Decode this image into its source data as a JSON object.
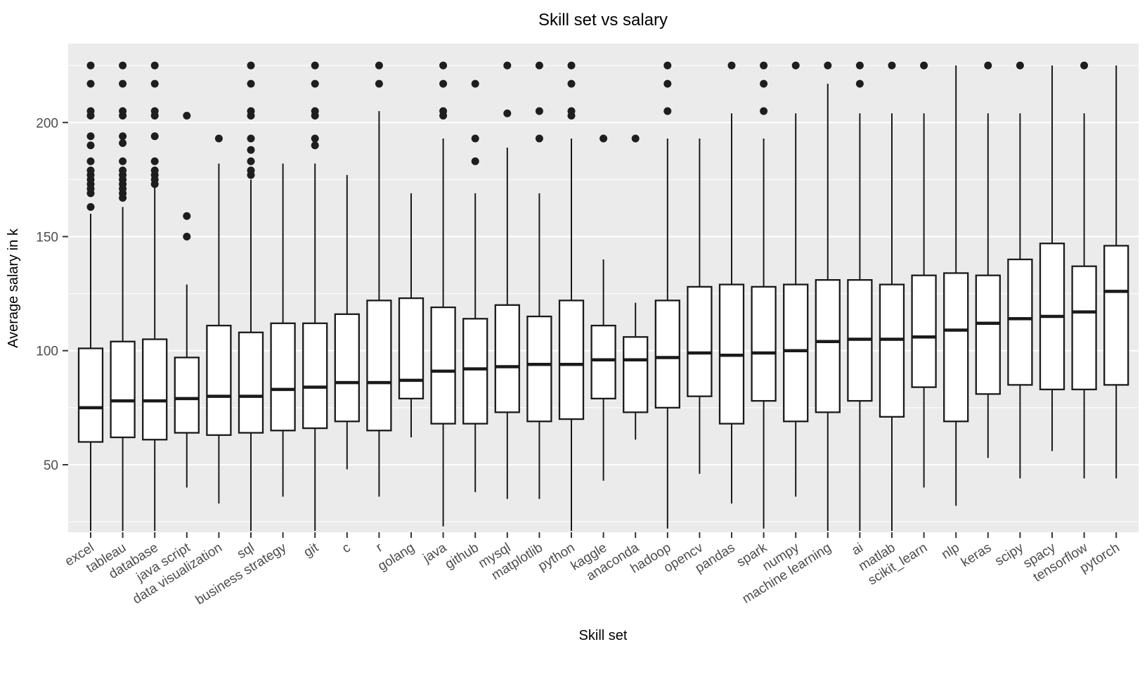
{
  "chart_data": {
    "type": "boxplot",
    "title": "Skill set vs salary",
    "xlabel": "Skill set",
    "ylabel": "Average salary in k",
    "ylim": [
      20.4,
      234.6
    ],
    "y_major_ticks": [
      50,
      100,
      150,
      200
    ],
    "y_minor_gridlines": [
      25,
      75,
      125,
      175,
      225
    ],
    "grid": true,
    "legend": false,
    "colors": {
      "panel_bg": "#EBEBEB",
      "gridline": "#FFFFFF",
      "box_fill": "#FFFFFF",
      "box_stroke": "#1A1A1A",
      "median_stroke": "#1A1A1A",
      "outlier_dot": "#1E1E1E",
      "axis_text": "#4D4D4D",
      "tick_mark": "#333333",
      "title_text": "#000000"
    },
    "series": [
      {
        "label": "excel",
        "whisker_low": 21,
        "q1": 60,
        "median": 75,
        "q3": 101,
        "whisker_high": 160,
        "outliers": [
          163,
          169,
          171,
          173,
          175,
          177,
          179,
          183,
          190,
          194,
          203,
          205,
          217,
          225
        ]
      },
      {
        "label": "tableau",
        "whisker_low": 21,
        "q1": 62,
        "median": 78,
        "q3": 104,
        "whisker_high": 163,
        "outliers": [
          167,
          169,
          171,
          173,
          175,
          177,
          179,
          183,
          191,
          194,
          203,
          205,
          217,
          225
        ]
      },
      {
        "label": "database",
        "whisker_low": 21,
        "q1": 61,
        "median": 78,
        "q3": 105,
        "whisker_high": 172,
        "outliers": [
          173,
          175,
          177,
          179,
          183,
          194,
          203,
          205,
          217,
          225
        ]
      },
      {
        "label": "java script",
        "whisker_low": 40,
        "q1": 64,
        "median": 79,
        "q3": 97,
        "whisker_high": 129,
        "outliers": [
          150,
          159,
          203
        ]
      },
      {
        "label": "data visualization",
        "whisker_low": 33,
        "q1": 63,
        "median": 80,
        "q3": 111,
        "whisker_high": 182,
        "outliers": [
          193
        ]
      },
      {
        "label": "sql",
        "whisker_low": 21,
        "q1": 64,
        "median": 80,
        "q3": 108,
        "whisker_high": 175,
        "outliers": [
          177,
          179,
          183,
          188,
          193,
          203,
          205,
          217,
          225
        ]
      },
      {
        "label": "business strategy",
        "whisker_low": 36,
        "q1": 65,
        "median": 83,
        "q3": 112,
        "whisker_high": 182,
        "outliers": []
      },
      {
        "label": "git",
        "whisker_low": 21,
        "q1": 66,
        "median": 84,
        "q3": 112,
        "whisker_high": 182,
        "outliers": [
          190,
          193,
          203,
          205,
          217,
          225
        ]
      },
      {
        "label": "c",
        "whisker_low": 48,
        "q1": 69,
        "median": 86,
        "q3": 116,
        "whisker_high": 177,
        "outliers": []
      },
      {
        "label": "r",
        "whisker_low": 36,
        "q1": 65,
        "median": 86,
        "q3": 122,
        "whisker_high": 205,
        "outliers": [
          217,
          225
        ]
      },
      {
        "label": "golang",
        "whisker_low": 62,
        "q1": 79,
        "median": 87,
        "q3": 123,
        "whisker_high": 169,
        "outliers": []
      },
      {
        "label": "java",
        "whisker_low": 23,
        "q1": 68,
        "median": 91,
        "q3": 119,
        "whisker_high": 193,
        "outliers": [
          203,
          205,
          217,
          225
        ]
      },
      {
        "label": "github",
        "whisker_low": 38,
        "q1": 68,
        "median": 92,
        "q3": 114,
        "whisker_high": 169,
        "outliers": [
          183,
          193,
          217
        ]
      },
      {
        "label": "mysql",
        "whisker_low": 35,
        "q1": 73,
        "median": 93,
        "q3": 120,
        "whisker_high": 189,
        "outliers": [
          204,
          225
        ]
      },
      {
        "label": "matplotlib",
        "whisker_low": 35,
        "q1": 69,
        "median": 94,
        "q3": 115,
        "whisker_high": 169,
        "outliers": [
          193,
          205,
          225
        ]
      },
      {
        "label": "python",
        "whisker_low": 21,
        "q1": 70,
        "median": 94,
        "q3": 122,
        "whisker_high": 193,
        "outliers": [
          203,
          205,
          217,
          225
        ]
      },
      {
        "label": "kaggle",
        "whisker_low": 43,
        "q1": 79,
        "median": 96,
        "q3": 111,
        "whisker_high": 140,
        "outliers": [
          193
        ]
      },
      {
        "label": "anaconda",
        "whisker_low": 61,
        "q1": 73,
        "median": 96,
        "q3": 106,
        "whisker_high": 121,
        "outliers": [
          193
        ]
      },
      {
        "label": "hadoop",
        "whisker_low": 22,
        "q1": 75,
        "median": 97,
        "q3": 122,
        "whisker_high": 193,
        "outliers": [
          205,
          217,
          225
        ]
      },
      {
        "label": "opencv",
        "whisker_low": 46,
        "q1": 80,
        "median": 99,
        "q3": 128,
        "whisker_high": 193,
        "outliers": []
      },
      {
        "label": "pandas",
        "whisker_low": 33,
        "q1": 68,
        "median": 98,
        "q3": 129,
        "whisker_high": 204,
        "outliers": [
          225
        ]
      },
      {
        "label": "spark",
        "whisker_low": 22,
        "q1": 78,
        "median": 99,
        "q3": 128,
        "whisker_high": 193,
        "outliers": [
          205,
          217,
          225
        ]
      },
      {
        "label": "numpy",
        "whisker_low": 36,
        "q1": 69,
        "median": 100,
        "q3": 129,
        "whisker_high": 204,
        "outliers": [
          225
        ]
      },
      {
        "label": "machine learning",
        "whisker_low": 21,
        "q1": 73,
        "median": 104,
        "q3": 131,
        "whisker_high": 217,
        "outliers": [
          225
        ]
      },
      {
        "label": "ai",
        "whisker_low": 21,
        "q1": 78,
        "median": 105,
        "q3": 131,
        "whisker_high": 204,
        "outliers": [
          217,
          225
        ]
      },
      {
        "label": "matlab",
        "whisker_low": 21,
        "q1": 71,
        "median": 105,
        "q3": 129,
        "whisker_high": 204,
        "outliers": [
          225
        ]
      },
      {
        "label": "scikit_learn",
        "whisker_low": 40,
        "q1": 84,
        "median": 106,
        "q3": 133,
        "whisker_high": 204,
        "outliers": [
          225
        ]
      },
      {
        "label": "nlp",
        "whisker_low": 32,
        "q1": 69,
        "median": 109,
        "q3": 134,
        "whisker_high": 225,
        "outliers": []
      },
      {
        "label": "keras",
        "whisker_low": 53,
        "q1": 81,
        "median": 112,
        "q3": 133,
        "whisker_high": 204,
        "outliers": [
          225
        ]
      },
      {
        "label": "scipy",
        "whisker_low": 44,
        "q1": 85,
        "median": 114,
        "q3": 140,
        "whisker_high": 204,
        "outliers": [
          225
        ]
      },
      {
        "label": "spacy",
        "whisker_low": 56,
        "q1": 83,
        "median": 115,
        "q3": 147,
        "whisker_high": 225,
        "outliers": []
      },
      {
        "label": "tensorflow",
        "whisker_low": 44,
        "q1": 83,
        "median": 117,
        "q3": 137,
        "whisker_high": 204,
        "outliers": [
          225
        ]
      },
      {
        "label": "pytorch",
        "whisker_low": 44,
        "q1": 85,
        "median": 126,
        "q3": 146,
        "whisker_high": 225,
        "outliers": []
      }
    ]
  }
}
